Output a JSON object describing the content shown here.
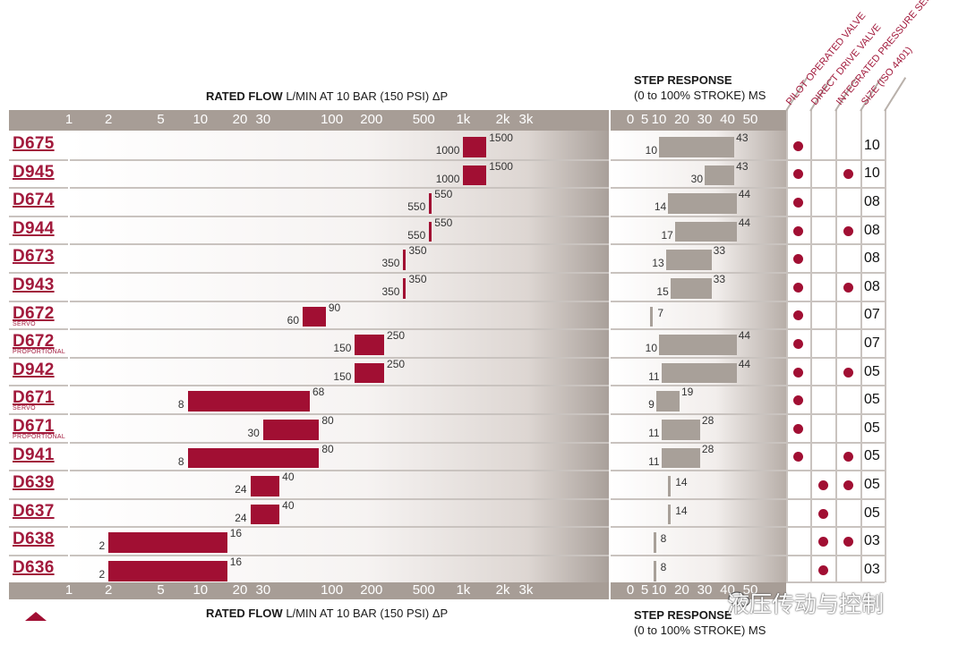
{
  "header": {
    "flow_title_bold": "RATED FLOW",
    "flow_title_rest": "L/MIN AT 10 BAR  (150 PSI) ΔP",
    "step_title_line1": "STEP RESPONSE",
    "step_title_line2": "(0 to 100% STROKE) MS"
  },
  "footer": {
    "flow_title_bold": "RATED FLOW",
    "flow_title_rest": "L/MIN AT 10 BAR  (150 PSI) ΔP",
    "step_title_line1": "STEP RESPONSE",
    "step_title_line2": "(0 to 100% STROKE) MS"
  },
  "column_headers": [
    "PILOT OPERATED VALVE",
    "DIRECT DRIVE VALVE",
    "INTEGRATED PRESSURE SENSOR",
    "SIZE (ISO 4401)"
  ],
  "watermark": "液压传动与控制",
  "colors": {
    "accent": "#a10f33",
    "axis": "#a79d96",
    "step_bar": "#a8a099"
  },
  "chart_data": [
    {
      "type": "bar",
      "subtype": "floating-range",
      "scale": "log",
      "xlabel": "RATED FLOW L/MIN AT 10 BAR  (150 PSI) ΔP",
      "xlim": [
        1,
        3000
      ],
      "ticks": [
        {
          "label": "1",
          "value": 1
        },
        {
          "label": "2",
          "value": 2
        },
        {
          "label": "5",
          "value": 5
        },
        {
          "label": "10",
          "value": 10
        },
        {
          "label": "20",
          "value": 20
        },
        {
          "label": "30",
          "value": 30
        },
        {
          "label": "100",
          "value": 100
        },
        {
          "label": "200",
          "value": 200
        },
        {
          "label": "500",
          "value": 500
        },
        {
          "label": "1k",
          "value": 1000
        },
        {
          "label": "2k",
          "value": 2000
        },
        {
          "label": "3k",
          "value": 3000
        }
      ],
      "rows": [
        {
          "model": "D675",
          "sub": "",
          "min": 1000,
          "max": 1500
        },
        {
          "model": "D945",
          "sub": "",
          "min": 1000,
          "max": 1500
        },
        {
          "model": "D674",
          "sub": "",
          "min": 550,
          "max": 550
        },
        {
          "model": "D944",
          "sub": "",
          "min": 550,
          "max": 550
        },
        {
          "model": "D673",
          "sub": "",
          "min": 350,
          "max": 350
        },
        {
          "model": "D943",
          "sub": "",
          "min": 350,
          "max": 350
        },
        {
          "model": "D672",
          "sub": "SERVO",
          "min": 60,
          "max": 90
        },
        {
          "model": "D672",
          "sub": "PROPORTIONAL",
          "min": 150,
          "max": 250
        },
        {
          "model": "D942",
          "sub": "",
          "min": 150,
          "max": 250
        },
        {
          "model": "D671",
          "sub": "SERVO",
          "min": 8,
          "max": 68
        },
        {
          "model": "D671",
          "sub": "PROPORTIONAL",
          "min": 30,
          "max": 80
        },
        {
          "model": "D941",
          "sub": "",
          "min": 8,
          "max": 80
        },
        {
          "model": "D639",
          "sub": "",
          "min": 24,
          "max": 40
        },
        {
          "model": "D637",
          "sub": "",
          "min": 24,
          "max": 40
        },
        {
          "model": "D638",
          "sub": "",
          "min": 2,
          "max": 16
        },
        {
          "model": "D636",
          "sub": "",
          "min": 2,
          "max": 16
        }
      ]
    },
    {
      "type": "bar",
      "subtype": "floating-range",
      "xlabel": "STEP RESPONSE (0 to 100% STROKE) MS",
      "ticks": [
        {
          "label": "0",
          "value": 0
        },
        {
          "label": "5",
          "value": 5
        },
        {
          "label": "10",
          "value": 10
        },
        {
          "label": "20",
          "value": 20
        },
        {
          "label": "30",
          "value": 30
        },
        {
          "label": "40",
          "value": 40
        },
        {
          "label": "50",
          "value": 50
        }
      ],
      "rows": [
        {
          "min": 10,
          "max": 43
        },
        {
          "min": 30,
          "max": 43
        },
        {
          "min": 14,
          "max": 44
        },
        {
          "min": 17,
          "max": 44
        },
        {
          "min": 13,
          "max": 33
        },
        {
          "min": 15,
          "max": 33
        },
        {
          "min": 7,
          "max": 7
        },
        {
          "min": 10,
          "max": 44
        },
        {
          "min": 11,
          "max": 44
        },
        {
          "min": 9,
          "max": 19
        },
        {
          "min": 11,
          "max": 28
        },
        {
          "min": 11,
          "max": 28
        },
        {
          "min": 14,
          "max": 14
        },
        {
          "min": 14,
          "max": 14
        },
        {
          "min": 8,
          "max": 8
        },
        {
          "min": 8,
          "max": 8
        }
      ]
    },
    {
      "type": "table",
      "columns": [
        "PILOT OPERATED VALVE",
        "DIRECT DRIVE VALVE",
        "INTEGRATED PRESSURE SENSOR",
        "SIZE (ISO 4401)"
      ],
      "rows": [
        {
          "pilot": true,
          "direct": false,
          "sensor": false,
          "size": "10"
        },
        {
          "pilot": true,
          "direct": false,
          "sensor": true,
          "size": "10"
        },
        {
          "pilot": true,
          "direct": false,
          "sensor": false,
          "size": "08"
        },
        {
          "pilot": true,
          "direct": false,
          "sensor": true,
          "size": "08"
        },
        {
          "pilot": true,
          "direct": false,
          "sensor": false,
          "size": "08"
        },
        {
          "pilot": true,
          "direct": false,
          "sensor": true,
          "size": "08"
        },
        {
          "pilot": true,
          "direct": false,
          "sensor": false,
          "size": "07"
        },
        {
          "pilot": true,
          "direct": false,
          "sensor": false,
          "size": "07"
        },
        {
          "pilot": true,
          "direct": false,
          "sensor": true,
          "size": "05"
        },
        {
          "pilot": true,
          "direct": false,
          "sensor": false,
          "size": "05"
        },
        {
          "pilot": true,
          "direct": false,
          "sensor": false,
          "size": "05"
        },
        {
          "pilot": true,
          "direct": false,
          "sensor": true,
          "size": "05"
        },
        {
          "pilot": false,
          "direct": true,
          "sensor": true,
          "size": "05"
        },
        {
          "pilot": false,
          "direct": true,
          "sensor": false,
          "size": "05"
        },
        {
          "pilot": false,
          "direct": true,
          "sensor": true,
          "size": "03"
        },
        {
          "pilot": false,
          "direct": true,
          "sensor": false,
          "size": "03"
        }
      ]
    }
  ]
}
